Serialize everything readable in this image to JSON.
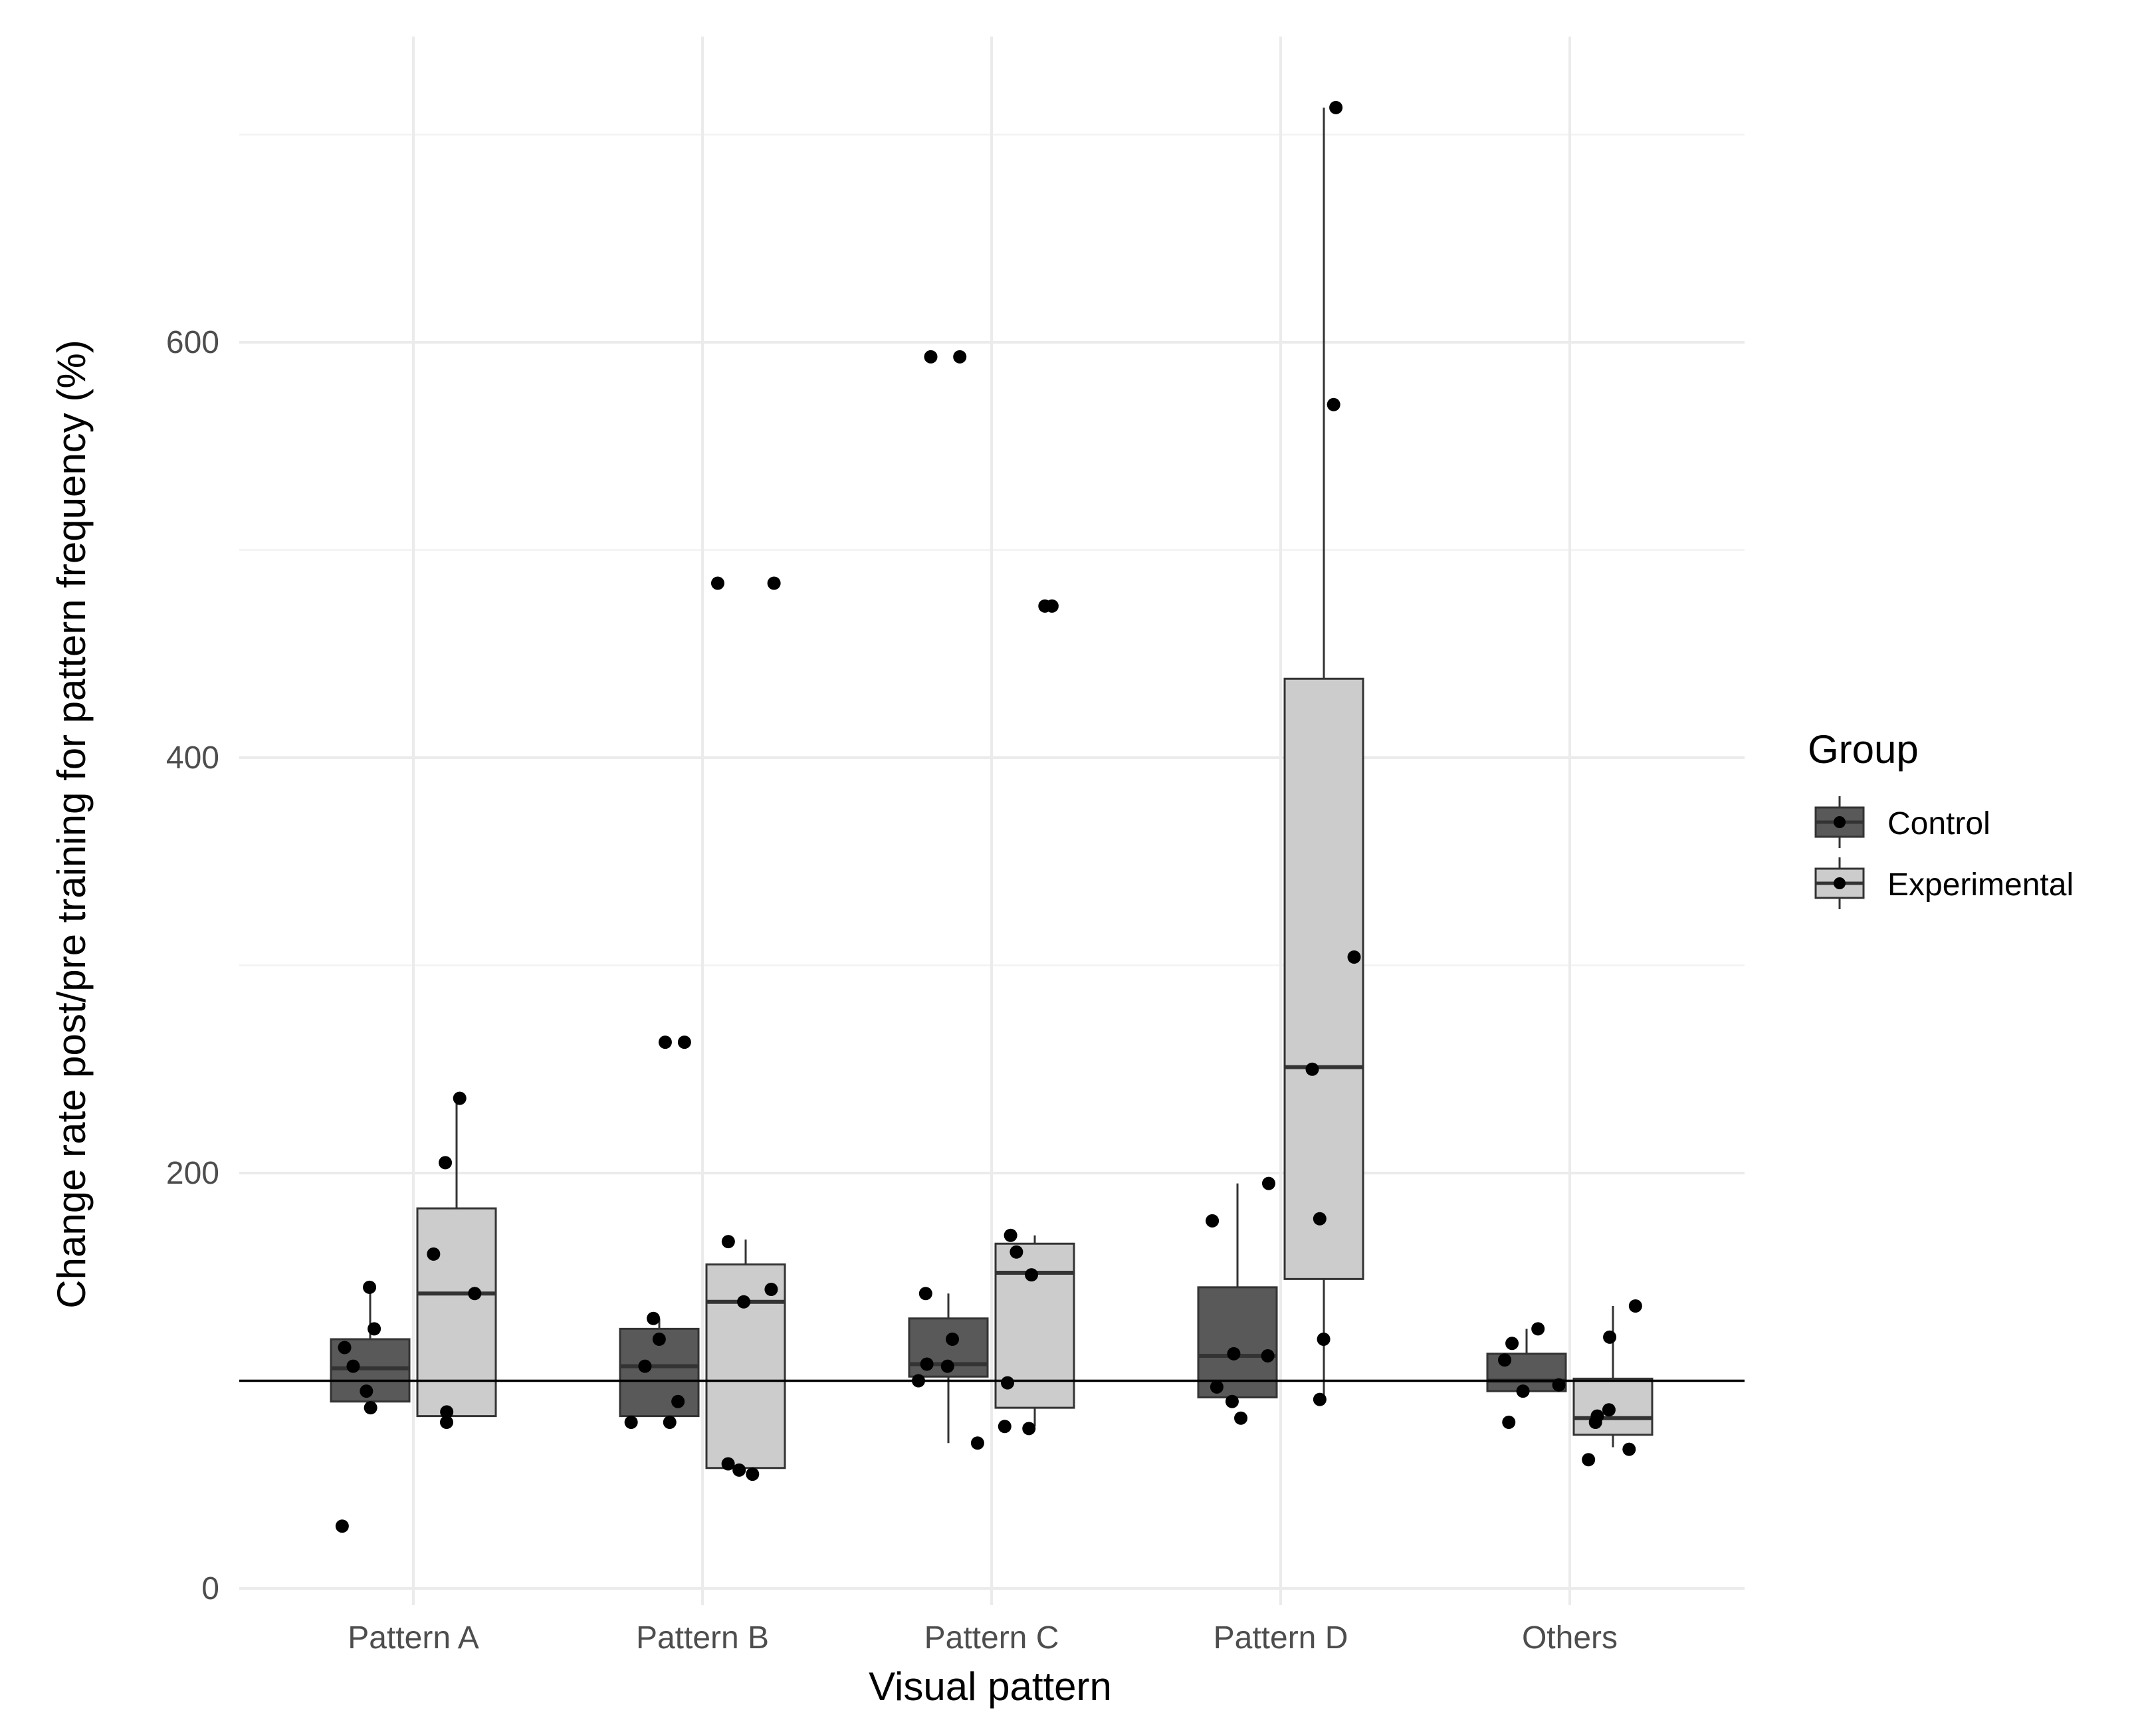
{
  "chart_data": {
    "type": "boxplot",
    "xlabel": "Visual pattern",
    "ylabel": "Change rate post/pre training for pattern frequency (%)",
    "ylim": [
      -5,
      710
    ],
    "yticks": [
      0,
      200,
      400,
      600
    ],
    "reference_line": 100,
    "categories": [
      "Pattern A",
      "Pattern B",
      "Pattern C",
      "Pattern D",
      "Others"
    ],
    "legend": {
      "title": "Group",
      "position": "right",
      "entries": [
        "Control",
        "Experimental"
      ]
    },
    "colors": {
      "Control": "#595959",
      "Experimental": "#cccccc"
    },
    "series": [
      {
        "name": "Control",
        "boxes": [
          {
            "category": "Pattern A",
            "whisker_low": 86,
            "q1": 90,
            "median": 106,
            "q3": 120,
            "whisker_high": 145
          },
          {
            "category": "Pattern B",
            "whisker_low": 83,
            "q1": 83,
            "median": 107,
            "q3": 125,
            "whisker_high": 130
          },
          {
            "category": "Pattern C",
            "whisker_low": 70,
            "q1": 102,
            "median": 108,
            "q3": 130,
            "whisker_high": 142
          },
          {
            "category": "Pattern D",
            "whisker_low": 92,
            "q1": 92,
            "median": 112,
            "q3": 145,
            "whisker_high": 195
          },
          {
            "category": "Others",
            "whisker_low": 95,
            "q1": 95,
            "median": 100,
            "q3": 113,
            "whisker_high": 125
          }
        ],
        "points": [
          {
            "category": "Pattern A",
            "values": [
              145,
              125,
              116,
              107,
              95,
              87,
              30
            ]
          },
          {
            "category": "Pattern B",
            "values": [
              263,
              263,
              130,
              107,
              90,
              80,
              80,
              120
            ]
          },
          {
            "category": "Pattern C",
            "values": [
              593,
              593,
              142,
              120,
              107,
              108,
              100,
              70
            ]
          },
          {
            "category": "Pattern D",
            "values": [
              195,
              177,
              113,
              112,
              97,
              90,
              82
            ]
          },
          {
            "category": "Others",
            "values": [
              125,
              118,
              110,
              98,
              95,
              80
            ]
          }
        ]
      },
      {
        "name": "Experimental",
        "boxes": [
          {
            "category": "Pattern A",
            "whisker_low": 83,
            "q1": 83,
            "median": 142,
            "q3": 183,
            "whisker_high": 236
          },
          {
            "category": "Pattern B",
            "whisker_low": 58,
            "q1": 58,
            "median": 138,
            "q3": 156,
            "whisker_high": 168
          },
          {
            "category": "Pattern C",
            "whisker_low": 78,
            "q1": 87,
            "median": 152,
            "q3": 166,
            "whisker_high": 170
          },
          {
            "category": "Pattern D",
            "whisker_low": 92,
            "q1": 149,
            "median": 251,
            "q3": 438,
            "whisker_high": 713
          },
          {
            "category": "Others",
            "whisker_low": 68,
            "q1": 74,
            "median": 82,
            "q3": 101,
            "whisker_high": 136
          }
        ],
        "points": [
          {
            "category": "Pattern A",
            "values": [
              236,
              205,
              161,
              142,
              85,
              80
            ]
          },
          {
            "category": "Pattern B",
            "values": [
              484,
              484,
              167,
              144,
              138,
              60,
              55,
              57
            ]
          },
          {
            "category": "Pattern C",
            "values": [
              473,
              473,
              170,
              162,
              151,
              99,
              78,
              77
            ]
          },
          {
            "category": "Pattern D",
            "values": [
              713,
              570,
              304,
              250,
              178,
              120,
              91
            ]
          },
          {
            "category": "Others",
            "values": [
              136,
              121,
              86,
              83,
              80,
              67,
              62
            ]
          }
        ]
      }
    ]
  }
}
